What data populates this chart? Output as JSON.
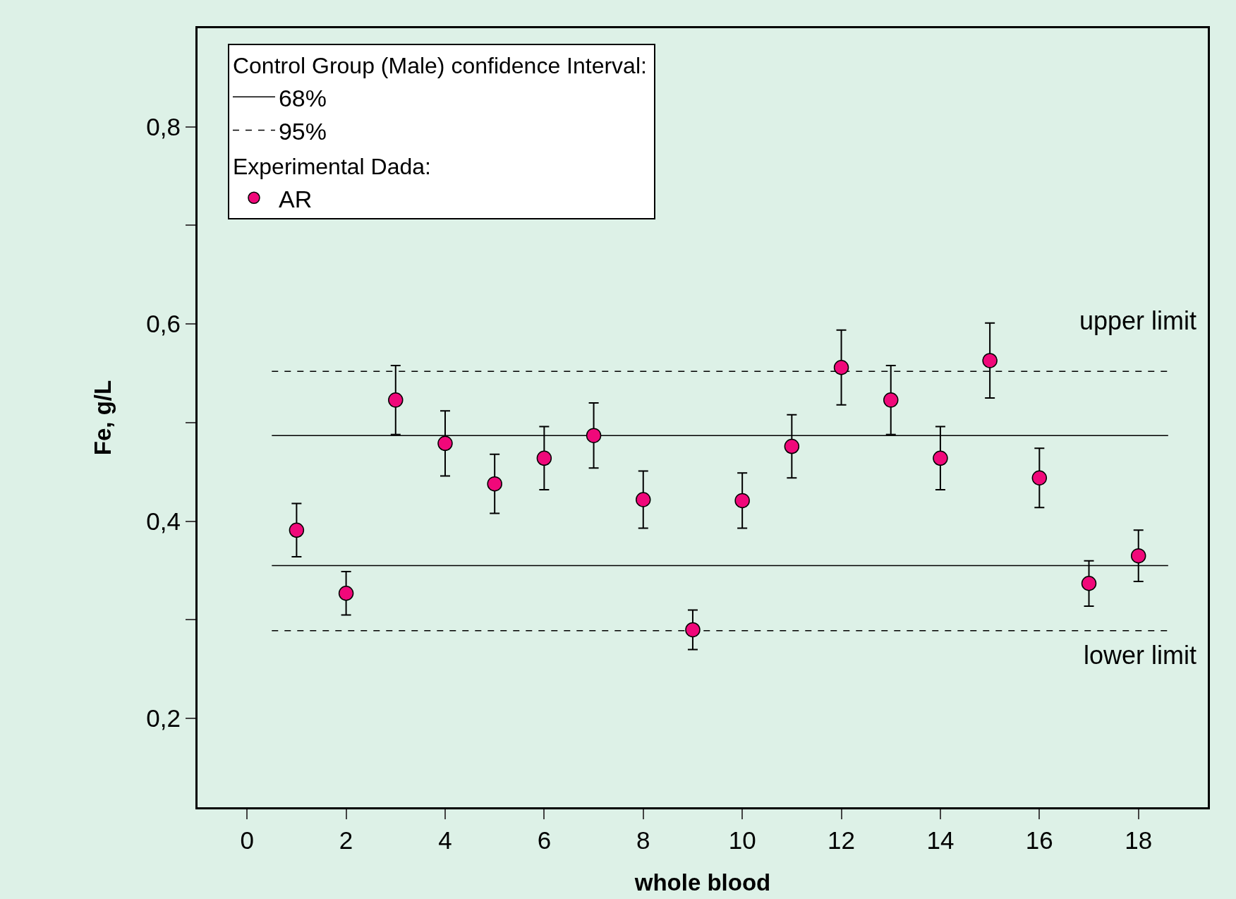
{
  "chart_data": {
    "type": "scatter",
    "xlabel": "whole blood",
    "ylabel": "Fe, g/L",
    "xlim": [
      -1,
      19.4
    ],
    "xticks": [
      0,
      2,
      4,
      6,
      8,
      10,
      12,
      14,
      16,
      18
    ],
    "ylim": [
      0.11,
      0.9
    ],
    "yticks": [
      {
        "value": 0.2,
        "label": "0,2"
      },
      {
        "value": 0.3,
        "label": null
      },
      {
        "value": 0.4,
        "label": "0,4"
      },
      {
        "value": 0.5,
        "label": null
      },
      {
        "value": 0.6,
        "label": "0,6"
      },
      {
        "value": 0.7,
        "label": null
      },
      {
        "value": 0.8,
        "label": "0,8"
      }
    ],
    "legend_title": [
      "Control Group (Male) confidence Interval:",
      "Experimental Dada:"
    ],
    "series": [
      {
        "name": "68%",
        "type": "line",
        "line_style": "solid",
        "color": "#000000",
        "x": [
          0.5,
          18.6
        ],
        "values": [
          0.487,
          0.487
        ]
      },
      {
        "type": "line",
        "line_style": "solid",
        "color": "#000000",
        "x": [
          0.5,
          18.6
        ],
        "values": [
          0.355,
          0.355
        ]
      },
      {
        "name": "95%",
        "type": "line",
        "line_style": "dashed",
        "color": "#000000",
        "x": [
          0.5,
          18.6
        ],
        "values": [
          0.552,
          0.552
        ]
      },
      {
        "type": "line",
        "line_style": "dashed",
        "color": "#000000",
        "x": [
          0.5,
          18.6
        ],
        "values": [
          0.289,
          0.289
        ]
      },
      {
        "name": "AR",
        "marker": "circle",
        "color": "#f0087a",
        "x": [
          1,
          2,
          3,
          4,
          5,
          6,
          7,
          8,
          9,
          10,
          11,
          12,
          13,
          14,
          15,
          16,
          17,
          18
        ],
        "values": [
          0.391,
          0.327,
          0.523,
          0.479,
          0.438,
          0.464,
          0.487,
          0.422,
          0.29,
          0.421,
          0.476,
          0.556,
          0.523,
          0.464,
          0.563,
          0.444,
          0.337,
          0.365
        ],
        "errors": [
          0.027,
          0.022,
          0.035,
          0.033,
          0.03,
          0.032,
          0.033,
          0.029,
          0.02,
          0.028,
          0.032,
          0.038,
          0.035,
          0.032,
          0.038,
          0.03,
          0.023,
          0.026
        ]
      }
    ],
    "annotations": [
      "upper limit",
      "lower limit"
    ],
    "legend": "top left",
    "grid": false
  }
}
